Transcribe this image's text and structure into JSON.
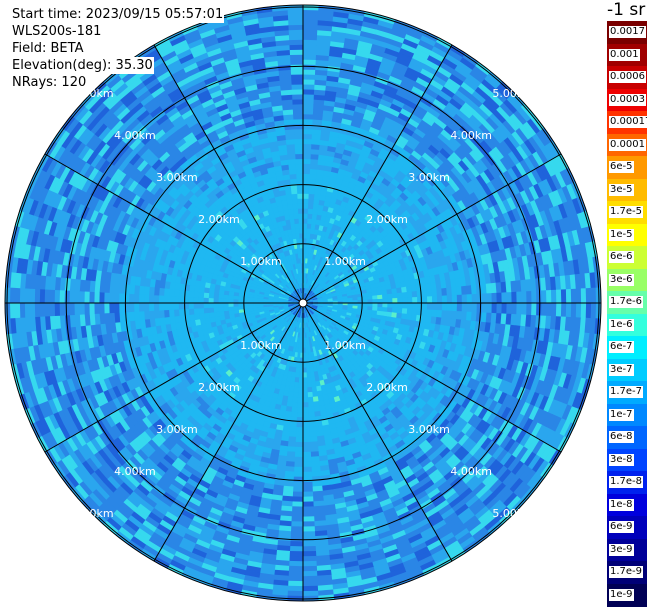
{
  "info": {
    "start_time": "Start time: 2023/09/15 05:57:01",
    "instrument": "WLS200s-181",
    "field": "Field: BETA",
    "elevation": "Elevation(deg): 35.30",
    "nrays": "NRays: 120"
  },
  "colorbar": {
    "title": "-1 sr",
    "labels": [
      "0.0017",
      "0.001",
      "0.0006",
      "0.0003",
      "0.00017",
      "0.0001",
      "6e-5",
      "3e-5",
      "1.7e-5",
      "1e-5",
      "6e-6",
      "3e-6",
      "1.7e-6",
      "1e-6",
      "6e-7",
      "3e-7",
      "1.7e-7",
      "1e-7",
      "6e-8",
      "3e-8",
      "1.7e-8",
      "1e-8",
      "6e-9",
      "3e-9",
      "1.7e-9",
      "1e-9"
    ],
    "colors": [
      "#7a0000",
      "#a00000",
      "#c80000",
      "#ee0000",
      "#ff3300",
      "#ff6600",
      "#ff9900",
      "#ffbb00",
      "#ffdd00",
      "#ffff00",
      "#ccff33",
      "#99ff66",
      "#66ffaa",
      "#33ffdd",
      "#00eeff",
      "#00ccff",
      "#00aaff",
      "#0088ff",
      "#0066ff",
      "#0044ff",
      "#0022ee",
      "#0000dd",
      "#0000bb",
      "#000099",
      "#000077",
      "#000055"
    ]
  },
  "rings": {
    "labels": [
      "1.00km",
      "2.00km",
      "3.00km",
      "4.00km",
      "5.00km"
    ]
  },
  "palette": {
    "inner": "#1fb8f2",
    "mid": "#2aa6ee",
    "outer": "#2a86e6",
    "dark": "#1f63db",
    "cyan": "#36d9ee",
    "speck": "#5cf0c8"
  }
}
